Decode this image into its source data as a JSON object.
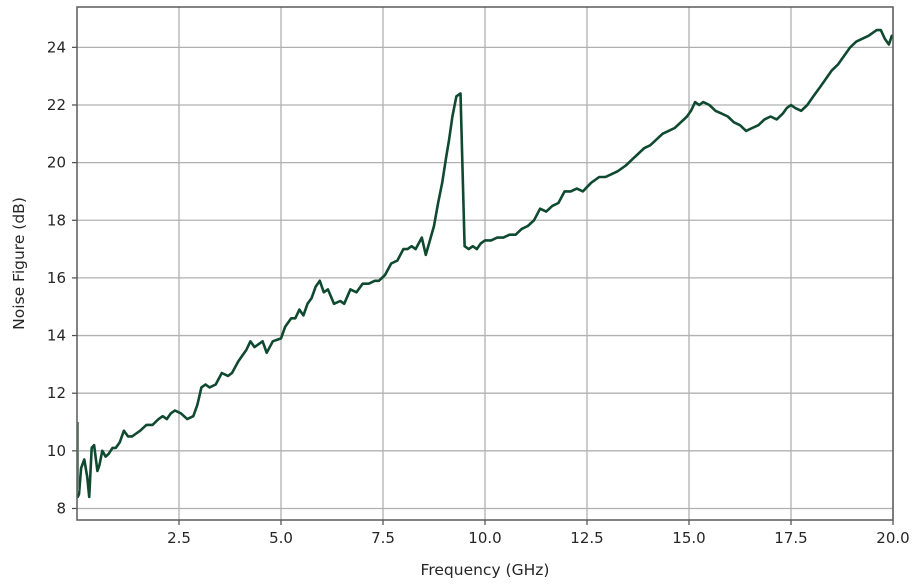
{
  "chart_data": {
    "type": "line",
    "title": "",
    "xlabel": "Frequency (GHz)",
    "ylabel": "Noise Figure (dB)",
    "xlim": [
      0,
      20
    ],
    "ylim": [
      7.6,
      25.4
    ],
    "x_ticks": [
      2.5,
      5.0,
      7.5,
      10.0,
      12.5,
      15.0,
      17.5,
      20.0
    ],
    "x_tick_labels": [
      "2.5",
      "5.0",
      "7.5",
      "10.0",
      "12.5",
      "15.0",
      "17.5",
      "20.0"
    ],
    "y_ticks": [
      8,
      10,
      12,
      14,
      16,
      18,
      20,
      22,
      24
    ],
    "y_tick_labels": [
      "8",
      "10",
      "12",
      "14",
      "16",
      "18",
      "20",
      "22",
      "24"
    ],
    "grid": true,
    "legend": "none",
    "colors": {
      "line": "#0f4a30",
      "frame": "#5a5a5a",
      "grid": "#b0b0b0"
    },
    "series": [
      {
        "x": [
          0.02,
          0.05,
          0.1,
          0.18,
          0.25,
          0.3,
          0.36,
          0.42,
          0.5,
          0.55,
          0.62,
          0.7,
          0.78,
          0.87,
          0.95,
          1.05,
          1.15,
          1.25,
          1.35,
          1.45,
          1.55,
          1.7,
          1.85,
          2.0,
          2.1,
          2.2,
          2.3,
          2.4,
          2.55,
          2.7,
          2.85,
          2.95,
          3.05,
          3.15,
          3.25,
          3.4,
          3.55,
          3.7,
          3.8,
          3.95,
          4.05,
          4.15,
          4.25,
          4.35,
          4.45,
          4.55,
          4.65,
          4.8,
          5.0,
          5.1,
          5.25,
          5.35,
          5.45,
          5.55,
          5.65,
          5.75,
          5.85,
          5.95,
          6.05,
          6.15,
          6.3,
          6.45,
          6.55,
          6.7,
          6.85,
          7.0,
          7.15,
          7.3,
          7.4,
          7.55,
          7.7,
          7.85,
          8.0,
          8.1,
          8.2,
          8.3,
          8.45,
          8.55,
          8.65,
          8.75,
          8.85,
          8.95,
          9.05,
          9.12,
          9.2,
          9.3,
          9.4,
          9.5,
          9.6,
          9.7,
          9.8,
          9.9,
          10.0,
          10.15,
          10.3,
          10.45,
          10.6,
          10.75,
          10.9,
          11.05,
          11.2,
          11.35,
          11.5,
          11.65,
          11.8,
          11.95,
          12.1,
          12.25,
          12.4,
          12.6,
          12.8,
          12.95,
          13.1,
          13.25,
          13.45,
          13.6,
          13.75,
          13.9,
          14.05,
          14.2,
          14.35,
          14.5,
          14.65,
          14.8,
          14.95,
          15.05,
          15.15,
          15.25,
          15.35,
          15.5,
          15.65,
          15.8,
          15.95,
          16.1,
          16.25,
          16.4,
          16.55,
          16.7,
          16.85,
          17.0,
          17.15,
          17.3,
          17.4,
          17.5,
          17.6,
          17.75,
          17.9,
          18.05,
          18.2,
          18.35,
          18.5,
          18.65,
          18.8,
          18.95,
          19.1,
          19.25,
          19.4,
          19.5,
          19.6,
          19.7,
          19.8,
          19.9,
          19.97
        ],
        "y": [
          8.4,
          8.5,
          9.4,
          9.7,
          9.1,
          8.4,
          10.1,
          10.2,
          9.3,
          9.5,
          10.0,
          9.8,
          9.9,
          10.1,
          10.1,
          10.3,
          10.7,
          10.5,
          10.5,
          10.6,
          10.7,
          10.9,
          10.9,
          11.1,
          11.2,
          11.1,
          11.3,
          11.4,
          11.3,
          11.1,
          11.2,
          11.6,
          12.2,
          12.3,
          12.2,
          12.3,
          12.7,
          12.6,
          12.7,
          13.1,
          13.3,
          13.5,
          13.8,
          13.6,
          13.7,
          13.8,
          13.4,
          13.8,
          13.9,
          14.3,
          14.6,
          14.6,
          14.9,
          14.7,
          15.1,
          15.3,
          15.7,
          15.9,
          15.5,
          15.6,
          15.1,
          15.2,
          15.1,
          15.6,
          15.5,
          15.8,
          15.8,
          15.9,
          15.9,
          16.1,
          16.5,
          16.6,
          17.0,
          17.0,
          17.1,
          17.0,
          17.4,
          16.8,
          17.3,
          17.8,
          18.6,
          19.3,
          20.2,
          20.8,
          21.6,
          22.3,
          22.4,
          17.1,
          17.0,
          17.1,
          17.0,
          17.2,
          17.3,
          17.3,
          17.4,
          17.4,
          17.5,
          17.5,
          17.7,
          17.8,
          18.0,
          18.4,
          18.3,
          18.5,
          18.6,
          19.0,
          19.0,
          19.1,
          19.0,
          19.3,
          19.5,
          19.5,
          19.6,
          19.7,
          19.9,
          20.1,
          20.3,
          20.5,
          20.6,
          20.8,
          21.0,
          21.1,
          21.2,
          21.4,
          21.6,
          21.8,
          22.1,
          22.0,
          22.1,
          22.0,
          21.8,
          21.7,
          21.6,
          21.4,
          21.3,
          21.1,
          21.2,
          21.3,
          21.5,
          21.6,
          21.5,
          21.7,
          21.9,
          22.0,
          21.9,
          21.8,
          22.0,
          22.3,
          22.6,
          22.9,
          23.2,
          23.4,
          23.7,
          24.0,
          24.2,
          24.3,
          24.4,
          24.5,
          24.6,
          24.6,
          24.3,
          24.1,
          24.4
        ]
      }
    ]
  }
}
